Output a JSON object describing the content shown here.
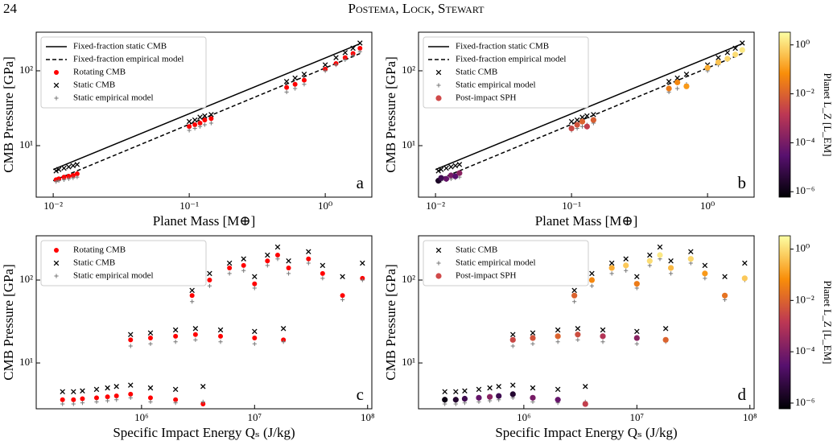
{
  "header": {
    "page_number": "24",
    "running_title": "Postema, Lock, Stewart"
  },
  "chart_data": [
    {
      "type": "scatter",
      "panel_label": "a",
      "xlabel": "Planet Mass [M⊕]",
      "ylabel": "CMB Pressure [GPa]",
      "xscale": "log",
      "yscale": "log",
      "xlim": [
        0.0075,
        2.2
      ],
      "ylim": [
        2.05,
        328
      ],
      "xticks": [
        {
          "value": 0.01,
          "label": "10⁻²"
        },
        {
          "value": 0.1,
          "label": "10⁻¹"
        },
        {
          "value": 1,
          "label": "10⁰"
        }
      ],
      "yticks": [
        {
          "value": 10,
          "label": "10¹"
        },
        {
          "value": 100,
          "label": "10²"
        }
      ],
      "legend": "upper left",
      "series": [
        {
          "name": "Fixed-fraction static CMB",
          "marker": "line",
          "style": "solid",
          "color": "#000000",
          "x": [
            0.01,
            1.8
          ],
          "values": [
            4.8,
            230
          ]
        },
        {
          "name": "Fixed-fraction empirical model",
          "marker": "line",
          "style": "dashed",
          "color": "#000000",
          "x": [
            0.01,
            1.8
          ],
          "values": [
            3.4,
            170
          ]
        },
        {
          "name": "Rotating CMB",
          "marker": "dot",
          "color": "#ff0000",
          "x": [
            0.0105,
            0.011,
            0.012,
            0.013,
            0.014,
            0.015,
            0.1,
            0.11,
            0.12,
            0.13,
            0.145,
            0.52,
            0.6,
            0.7,
            1.0,
            1.2,
            1.4,
            1.6,
            1.8
          ],
          "values": [
            3.5,
            3.6,
            3.8,
            3.9,
            4.0,
            4.2,
            18,
            19,
            20,
            22,
            23,
            60,
            66,
            75,
            105,
            125,
            150,
            170,
            200
          ]
        },
        {
          "name": "Static CMB",
          "marker": "x",
          "color": "#000000",
          "x": [
            0.0105,
            0.011,
            0.012,
            0.013,
            0.014,
            0.015,
            0.1,
            0.11,
            0.12,
            0.13,
            0.145,
            0.52,
            0.6,
            0.7,
            1.0,
            1.2,
            1.4,
            1.6,
            1.8
          ],
          "values": [
            4.6,
            4.8,
            5.0,
            5.2,
            5.4,
            5.6,
            21,
            22,
            24,
            25,
            26,
            72,
            80,
            90,
            120,
            150,
            175,
            200,
            235
          ]
        },
        {
          "name": "Static empirical model",
          "marker": "plus",
          "color": "#777777",
          "x": [
            0.0105,
            0.011,
            0.012,
            0.013,
            0.014,
            0.015,
            0.1,
            0.11,
            0.12,
            0.13,
            0.145,
            0.52,
            0.6,
            0.7,
            1.0,
            1.2,
            1.4,
            1.6,
            1.8
          ],
          "values": [
            3.3,
            3.4,
            3.5,
            3.6,
            3.7,
            3.8,
            16,
            17,
            18,
            19,
            20,
            52,
            58,
            66,
            100,
            120,
            140,
            160,
            180
          ]
        }
      ]
    },
    {
      "type": "scatter",
      "panel_label": "b",
      "xlabel": "Planet Mass [M⊕]",
      "ylabel": "CMB Pressure [GPa]",
      "xscale": "log",
      "yscale": "log",
      "xlim": [
        0.0075,
        2.2
      ],
      "ylim": [
        2.05,
        328
      ],
      "xticks": [
        {
          "value": 0.01,
          "label": "10⁻²"
        },
        {
          "value": 0.1,
          "label": "10⁻¹"
        },
        {
          "value": 1,
          "label": "10⁰"
        }
      ],
      "yticks": [
        {
          "value": 10,
          "label": "10¹"
        },
        {
          "value": 100,
          "label": "10²"
        }
      ],
      "legend": "upper left",
      "series": [
        {
          "name": "Fixed-fraction static CMB",
          "marker": "line",
          "style": "solid",
          "color": "#000000",
          "x": [
            0.01,
            1.8
          ],
          "values": [
            4.8,
            230
          ]
        },
        {
          "name": "Fixed-fraction empirical model",
          "marker": "line",
          "style": "dashed",
          "color": "#000000",
          "x": [
            0.01,
            1.8
          ],
          "values": [
            3.4,
            170
          ]
        },
        {
          "name": "Static CMB",
          "marker": "x",
          "color": "#000000",
          "x": [
            0.0105,
            0.011,
            0.012,
            0.013,
            0.014,
            0.015,
            0.1,
            0.11,
            0.12,
            0.13,
            0.145,
            0.52,
            0.6,
            0.7,
            1.0,
            1.2,
            1.4,
            1.6,
            1.8
          ],
          "values": [
            4.6,
            4.8,
            5.0,
            5.2,
            5.4,
            5.6,
            21,
            22,
            24,
            25,
            26,
            72,
            80,
            90,
            120,
            150,
            175,
            200,
            235
          ]
        },
        {
          "name": "Static empirical model",
          "marker": "plus",
          "color": "#777777",
          "x": [
            0.0105,
            0.011,
            0.012,
            0.013,
            0.014,
            0.015,
            0.1,
            0.11,
            0.12,
            0.13,
            0.145,
            0.52,
            0.6,
            0.7,
            1.0,
            1.2,
            1.4,
            1.6,
            1.8
          ],
          "values": [
            3.3,
            3.4,
            3.5,
            3.6,
            3.7,
            3.8,
            16,
            17,
            18,
            19,
            20,
            52,
            58,
            66,
            100,
            120,
            140,
            160,
            180
          ]
        },
        {
          "name": "Post-impact SPH",
          "marker": "circle",
          "color": "#d04a4a",
          "colormap": "inferno",
          "x": [
            0.0105,
            0.011,
            0.012,
            0.013,
            0.014,
            0.015,
            0.1,
            0.11,
            0.12,
            0.13,
            0.145,
            0.52,
            0.6,
            0.7,
            1.0,
            1.2,
            1.4,
            1.6,
            1.8
          ],
          "values": [
            3.4,
            3.7,
            3.6,
            4.0,
            3.9,
            4.3,
            17,
            19,
            21,
            18,
            22,
            58,
            70,
            62,
            110,
            130,
            145,
            165,
            190
          ],
          "lz": [
            2e-06,
            1e-05,
            5e-05,
            0.0001,
            3e-05,
            0.0002,
            0.003,
            0.005,
            0.01,
            0.002,
            0.008,
            0.03,
            0.05,
            0.1,
            0.2,
            0.4,
            0.8,
            1,
            1.5
          ]
        }
      ],
      "colorbar": {
        "label": "Planet L_Z [L_EM]",
        "lim": [
          6e-07,
          3.3
        ],
        "ticks": [
          {
            "value": 1e-06,
            "label": "10⁻⁶"
          },
          {
            "value": 0.0001,
            "label": "10⁻⁴"
          },
          {
            "value": 0.01,
            "label": "10⁻²"
          },
          {
            "value": 1,
            "label": "10⁰"
          }
        ]
      }
    },
    {
      "type": "scatter",
      "panel_label": "c",
      "xlabel": "Specific Impact Energy Qₛ (J/kg)",
      "ylabel": "CMB Pressure [GPa]",
      "xscale": "log",
      "yscale": "log",
      "xlim": [
        117000,
        109000000
      ],
      "ylim": [
        2.8,
        342
      ],
      "xticks": [
        {
          "value": 1000000,
          "label": "10⁶"
        },
        {
          "value": 10000000,
          "label": "10⁷"
        },
        {
          "value": 100000000,
          "label": "10⁸"
        }
      ],
      "yticks": [
        {
          "value": 10,
          "label": "10¹"
        },
        {
          "value": 100,
          "label": "10²"
        }
      ],
      "legend": "upper left",
      "series": [
        {
          "name": "Rotating CMB",
          "marker": "dot",
          "color": "#ff0000",
          "x": [
            200000,
            250000,
            300000,
            400000,
            500000,
            600000,
            800000,
            1200000,
            2000000,
            3500000,
            800000,
            1200000,
            2000000,
            3000000,
            5000000,
            10000000,
            18000000,
            2800000,
            4000000,
            6000000,
            8000000,
            10000000,
            13000000,
            16000000,
            20000000,
            30000000,
            40000000,
            60000000,
            90000000
          ],
          "values": [
            3.6,
            3.6,
            3.7,
            3.8,
            3.9,
            4.0,
            4.2,
            3.8,
            3.6,
            3.2,
            19,
            20,
            21,
            22,
            21,
            20,
            19,
            65,
            100,
            140,
            150,
            90,
            170,
            200,
            140,
            180,
            120,
            65,
            105
          ]
        },
        {
          "name": "Static CMB",
          "marker": "x",
          "color": "#000000",
          "x": [
            200000,
            250000,
            300000,
            400000,
            500000,
            600000,
            800000,
            1200000,
            2000000,
            3500000,
            800000,
            1200000,
            2000000,
            3000000,
            5000000,
            10000000,
            18000000,
            2800000,
            4000000,
            6000000,
            8000000,
            10000000,
            13000000,
            16000000,
            20000000,
            30000000,
            40000000,
            60000000,
            90000000
          ],
          "values": [
            4.5,
            4.5,
            4.6,
            4.8,
            5.0,
            5.2,
            5.4,
            5.0,
            4.8,
            5.2,
            22,
            23,
            25,
            26,
            25,
            24,
            26,
            75,
            120,
            160,
            180,
            110,
            200,
            250,
            170,
            220,
            150,
            110,
            160
          ]
        },
        {
          "name": "Static empirical model",
          "marker": "plus",
          "color": "#777777",
          "x": [
            200000,
            250000,
            300000,
            400000,
            500000,
            600000,
            800000,
            1200000,
            2000000,
            3500000,
            800000,
            1200000,
            2000000,
            3000000,
            5000000,
            10000000,
            18000000,
            2800000,
            4000000,
            6000000,
            8000000,
            10000000,
            13000000,
            16000000,
            20000000,
            30000000,
            40000000,
            60000000,
            90000000
          ],
          "values": [
            3.2,
            3.2,
            3.3,
            3.4,
            3.5,
            3.6,
            3.8,
            3.4,
            3.3,
            3.4,
            16,
            17,
            18,
            19,
            18,
            17,
            18,
            55,
            85,
            120,
            130,
            80,
            150,
            180,
            120,
            160,
            105,
            58,
            100
          ]
        }
      ]
    },
    {
      "type": "scatter",
      "panel_label": "d",
      "xlabel": "Specific Impact Energy Qₛ (J/kg)",
      "ylabel": "CMB Pressure [GPa]",
      "xscale": "log",
      "yscale": "log",
      "xlim": [
        117000,
        109000000
      ],
      "ylim": [
        2.8,
        342
      ],
      "xticks": [
        {
          "value": 1000000,
          "label": "10⁶"
        },
        {
          "value": 10000000,
          "label": "10⁷"
        },
        {
          "value": 100000000,
          "label": "10⁸"
        }
      ],
      "yticks": [
        {
          "value": 10,
          "label": "10¹"
        },
        {
          "value": 100,
          "label": "10²"
        }
      ],
      "legend": "upper left",
      "series": [
        {
          "name": "Static CMB",
          "marker": "x",
          "color": "#000000",
          "x": [
            200000,
            250000,
            300000,
            400000,
            500000,
            600000,
            800000,
            1200000,
            2000000,
            3500000,
            800000,
            1200000,
            2000000,
            3000000,
            5000000,
            10000000,
            18000000,
            2800000,
            4000000,
            6000000,
            8000000,
            10000000,
            13000000,
            16000000,
            20000000,
            30000000,
            40000000,
            60000000,
            90000000
          ],
          "values": [
            4.5,
            4.5,
            4.6,
            4.8,
            5.0,
            5.2,
            5.4,
            5.0,
            4.8,
            5.2,
            22,
            23,
            25,
            26,
            25,
            24,
            26,
            75,
            120,
            160,
            180,
            110,
            200,
            250,
            170,
            220,
            150,
            110,
            160
          ]
        },
        {
          "name": "Static empirical model",
          "marker": "plus",
          "color": "#777777",
          "x": [
            200000,
            250000,
            300000,
            400000,
            500000,
            600000,
            800000,
            1200000,
            2000000,
            3500000,
            800000,
            1200000,
            2000000,
            3000000,
            5000000,
            10000000,
            18000000,
            2800000,
            4000000,
            6000000,
            8000000,
            10000000,
            13000000,
            16000000,
            20000000,
            30000000,
            40000000,
            60000000,
            90000000
          ],
          "values": [
            3.2,
            3.2,
            3.3,
            3.4,
            3.5,
            3.6,
            3.8,
            3.4,
            3.3,
            3.4,
            16,
            17,
            18,
            19,
            18,
            17,
            18,
            55,
            85,
            120,
            130,
            80,
            150,
            180,
            120,
            160,
            105,
            58,
            100
          ]
        },
        {
          "name": "Post-impact SPH",
          "marker": "circle",
          "color": "#d04a4a",
          "colormap": "inferno",
          "x": [
            200000,
            250000,
            300000,
            400000,
            500000,
            600000,
            800000,
            1200000,
            2000000,
            3500000,
            800000,
            1200000,
            2000000,
            3000000,
            5000000,
            10000000,
            18000000,
            2800000,
            4000000,
            6000000,
            8000000,
            10000000,
            13000000,
            16000000,
            20000000,
            30000000,
            40000000,
            60000000,
            90000000
          ],
          "values": [
            3.6,
            3.6,
            3.7,
            3.8,
            3.9,
            4.0,
            4.2,
            3.8,
            3.6,
            3.2,
            19,
            20,
            21,
            22,
            21,
            20,
            19,
            65,
            100,
            140,
            150,
            90,
            170,
            200,
            140,
            180,
            120,
            65,
            105
          ],
          "lz": [
            1e-06,
            3e-06,
            1e-05,
            5e-05,
            0.0002,
            1e-05,
            3e-06,
            0.0001,
            5e-05,
            0.002,
            0.003,
            0.005,
            0.01,
            0.004,
            0.001,
            0.0002,
            0.01,
            0.01,
            0.05,
            0.2,
            0.5,
            0.03,
            1,
            1.5,
            0.3,
            0.8,
            0.1,
            0.02,
            0.5
          ]
        }
      ],
      "colorbar": {
        "label": "Planet L_Z [L_EM]",
        "lim": [
          6e-07,
          3.3
        ],
        "ticks": [
          {
            "value": 1e-06,
            "label": "10⁻⁶"
          },
          {
            "value": 0.0001,
            "label": "10⁻⁴"
          },
          {
            "value": 0.01,
            "label": "10⁻²"
          },
          {
            "value": 1,
            "label": "10⁰"
          }
        ]
      }
    }
  ]
}
